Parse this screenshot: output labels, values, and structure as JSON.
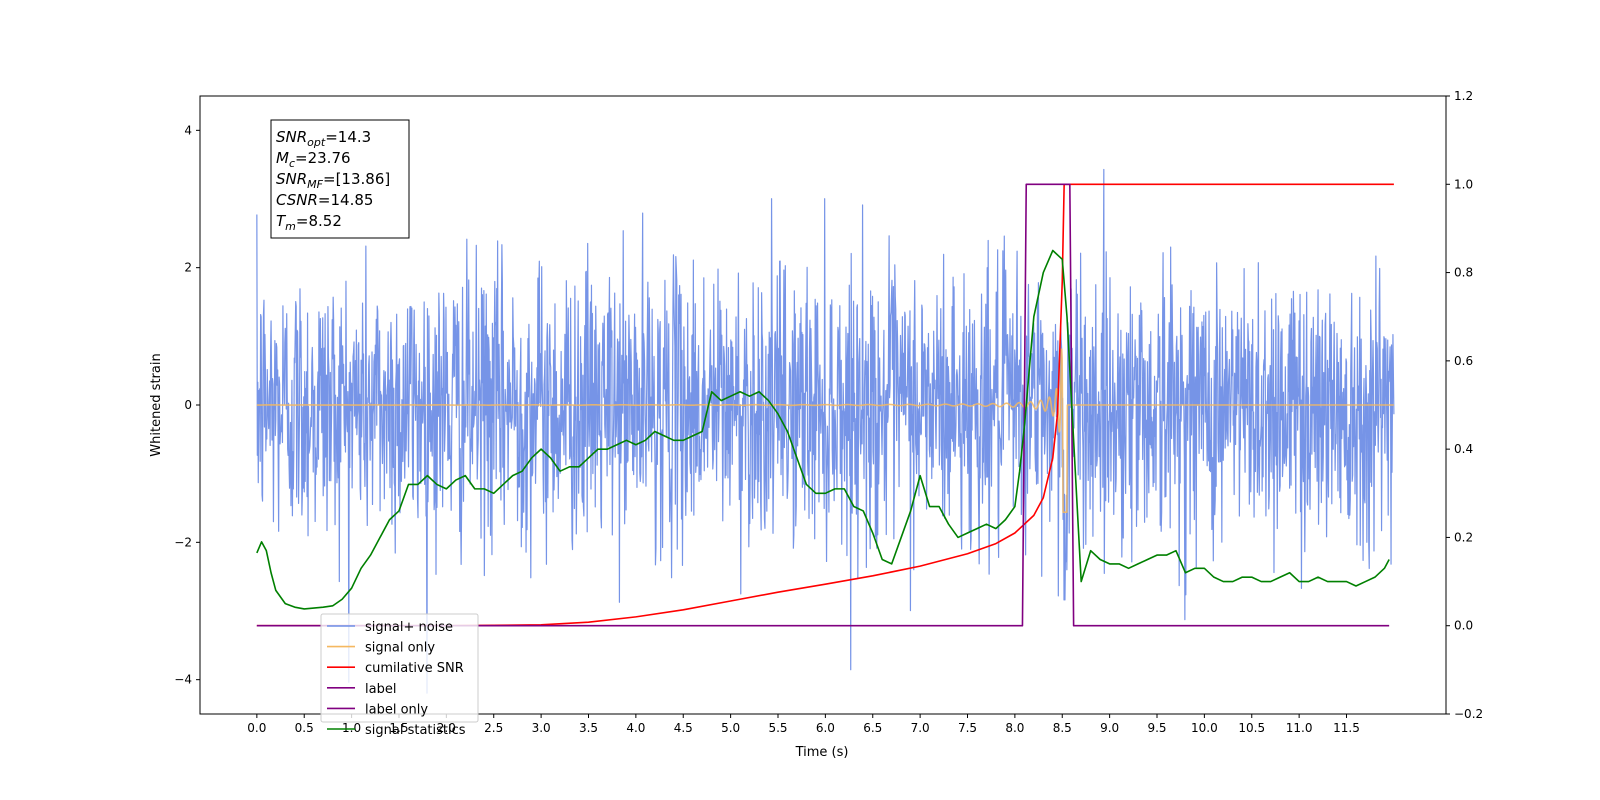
{
  "chart_data": {
    "type": "line",
    "xlabel": "Time (s)",
    "ylabel": "Whitened strain",
    "xlim": [
      -0.6,
      12.55
    ],
    "ylim": [
      -4.5,
      4.5
    ],
    "y2lim": [
      -0.2,
      1.2
    ],
    "x_ticks": [
      "0.0",
      "0.5",
      "1.0",
      "1.5",
      "2.0",
      "2.5",
      "3.0",
      "3.5",
      "4.0",
      "4.5",
      "5.0",
      "5.5",
      "6.0",
      "6.5",
      "7.0",
      "7.5",
      "8.0",
      "8.5",
      "9.0",
      "9.5",
      "10.0",
      "10.5",
      "11.0",
      "11.5"
    ],
    "y_ticks": [
      "4",
      "2",
      "0",
      "−2",
      "−4"
    ],
    "y2_ticks": [
      "1.2",
      "1.0",
      "0.8",
      "0.6",
      "0.4",
      "0.2",
      "0.0",
      "−0.2"
    ],
    "grid": false,
    "legend_position": "lower-left",
    "annotation": {
      "lines": [
        {
          "sym": "SNR",
          "sub": "opt",
          "val": "=14.3"
        },
        {
          "sym": "M",
          "sub": "c",
          "val": "=23.76"
        },
        {
          "sym": "SNR",
          "sub": "MF",
          "val": "=[13.86]"
        },
        {
          "sym": "CSNR",
          "sub": "",
          "val": "=14.85"
        },
        {
          "sym": "T",
          "sub": "m",
          "val": "=8.52"
        }
      ]
    },
    "legend": [
      {
        "name": "signal+ noise",
        "color": "#6f8ee6"
      },
      {
        "name": "signal only",
        "color": "#f5b860"
      },
      {
        "name": "cumilative SNR",
        "color": "#ff0000"
      },
      {
        "name": "label",
        "color": "#800080"
      },
      {
        "name": "label only",
        "color": "#800080"
      },
      {
        "name": "signal statistics",
        "color": "#008000"
      }
    ],
    "series": [
      {
        "name": "signal+ noise",
        "axis": "left",
        "color": "#6f8ee6",
        "kind": "noise",
        "x_start": 0.0,
        "x_end": 12.0,
        "sigma": 1.0
      },
      {
        "name": "signal only",
        "axis": "left",
        "color": "#f5b860",
        "kind": "chirp",
        "x_start": 0.0,
        "x_end": 12.0,
        "merger_time": 8.52
      },
      {
        "name": "cumilative SNR",
        "axis": "right",
        "color": "#ff0000",
        "x": [
          0.0,
          2.0,
          3.0,
          3.5,
          4.0,
          4.5,
          5.0,
          5.5,
          6.0,
          6.5,
          7.0,
          7.5,
          7.8,
          8.0,
          8.2,
          8.3,
          8.4,
          8.45,
          8.5,
          8.52,
          8.55,
          12.0
        ],
        "y": [
          0.0,
          0.0,
          0.002,
          0.008,
          0.02,
          0.036,
          0.056,
          0.076,
          0.094,
          0.113,
          0.135,
          0.163,
          0.186,
          0.21,
          0.25,
          0.29,
          0.38,
          0.48,
          0.78,
          1.0,
          1.0,
          1.0
        ]
      },
      {
        "name": "label",
        "axis": "right",
        "color": "#800080",
        "x": [
          0.0,
          8.08,
          8.12,
          8.58,
          8.62,
          11.95
        ],
        "y": [
          0.0,
          0.0,
          1.0,
          1.0,
          0.0,
          0.0
        ]
      },
      {
        "name": "signal statistics",
        "axis": "right",
        "color": "#008000",
        "x": [
          0.0,
          0.05,
          0.1,
          0.15,
          0.2,
          0.3,
          0.4,
          0.5,
          0.6,
          0.7,
          0.8,
          0.9,
          1.0,
          1.1,
          1.2,
          1.3,
          1.4,
          1.5,
          1.6,
          1.7,
          1.8,
          1.9,
          2.0,
          2.1,
          2.2,
          2.3,
          2.4,
          2.5,
          2.6,
          2.7,
          2.8,
          2.9,
          3.0,
          3.1,
          3.2,
          3.3,
          3.4,
          3.5,
          3.6,
          3.7,
          3.8,
          3.9,
          4.0,
          4.1,
          4.2,
          4.3,
          4.4,
          4.5,
          4.6,
          4.7,
          4.8,
          4.9,
          5.0,
          5.1,
          5.2,
          5.3,
          5.4,
          5.5,
          5.6,
          5.7,
          5.8,
          5.9,
          6.0,
          6.1,
          6.2,
          6.3,
          6.4,
          6.5,
          6.6,
          6.7,
          6.8,
          6.9,
          7.0,
          7.1,
          7.2,
          7.3,
          7.4,
          7.5,
          7.6,
          7.7,
          7.8,
          7.9,
          8.0,
          8.05,
          8.1,
          8.2,
          8.3,
          8.4,
          8.5,
          8.55,
          8.6,
          8.7,
          8.8,
          8.9,
          9.0,
          9.1,
          9.2,
          9.3,
          9.4,
          9.5,
          9.6,
          9.7,
          9.8,
          9.9,
          10.0,
          10.1,
          10.2,
          10.3,
          10.4,
          10.5,
          10.6,
          10.7,
          10.8,
          10.9,
          11.0,
          11.1,
          11.2,
          11.3,
          11.4,
          11.5,
          11.6,
          11.7,
          11.8,
          11.9,
          11.95
        ],
        "y": [
          0.165,
          0.19,
          0.17,
          0.12,
          0.08,
          0.05,
          0.042,
          0.038,
          0.04,
          0.042,
          0.045,
          0.06,
          0.085,
          0.13,
          0.16,
          0.2,
          0.24,
          0.26,
          0.32,
          0.32,
          0.34,
          0.32,
          0.31,
          0.33,
          0.34,
          0.31,
          0.31,
          0.3,
          0.32,
          0.34,
          0.35,
          0.38,
          0.4,
          0.38,
          0.35,
          0.36,
          0.36,
          0.38,
          0.4,
          0.4,
          0.41,
          0.42,
          0.41,
          0.42,
          0.44,
          0.43,
          0.42,
          0.42,
          0.43,
          0.44,
          0.53,
          0.51,
          0.52,
          0.53,
          0.52,
          0.53,
          0.51,
          0.48,
          0.44,
          0.38,
          0.32,
          0.3,
          0.3,
          0.31,
          0.31,
          0.27,
          0.26,
          0.21,
          0.15,
          0.14,
          0.2,
          0.26,
          0.34,
          0.27,
          0.27,
          0.23,
          0.2,
          0.21,
          0.22,
          0.23,
          0.22,
          0.24,
          0.27,
          0.35,
          0.45,
          0.7,
          0.8,
          0.85,
          0.83,
          0.7,
          0.5,
          0.1,
          0.17,
          0.15,
          0.14,
          0.14,
          0.13,
          0.14,
          0.15,
          0.16,
          0.16,
          0.17,
          0.12,
          0.13,
          0.13,
          0.11,
          0.1,
          0.1,
          0.11,
          0.11,
          0.1,
          0.1,
          0.11,
          0.12,
          0.1,
          0.1,
          0.11,
          0.1,
          0.1,
          0.1,
          0.09,
          0.1,
          0.11,
          0.13,
          0.15
        ]
      }
    ]
  }
}
